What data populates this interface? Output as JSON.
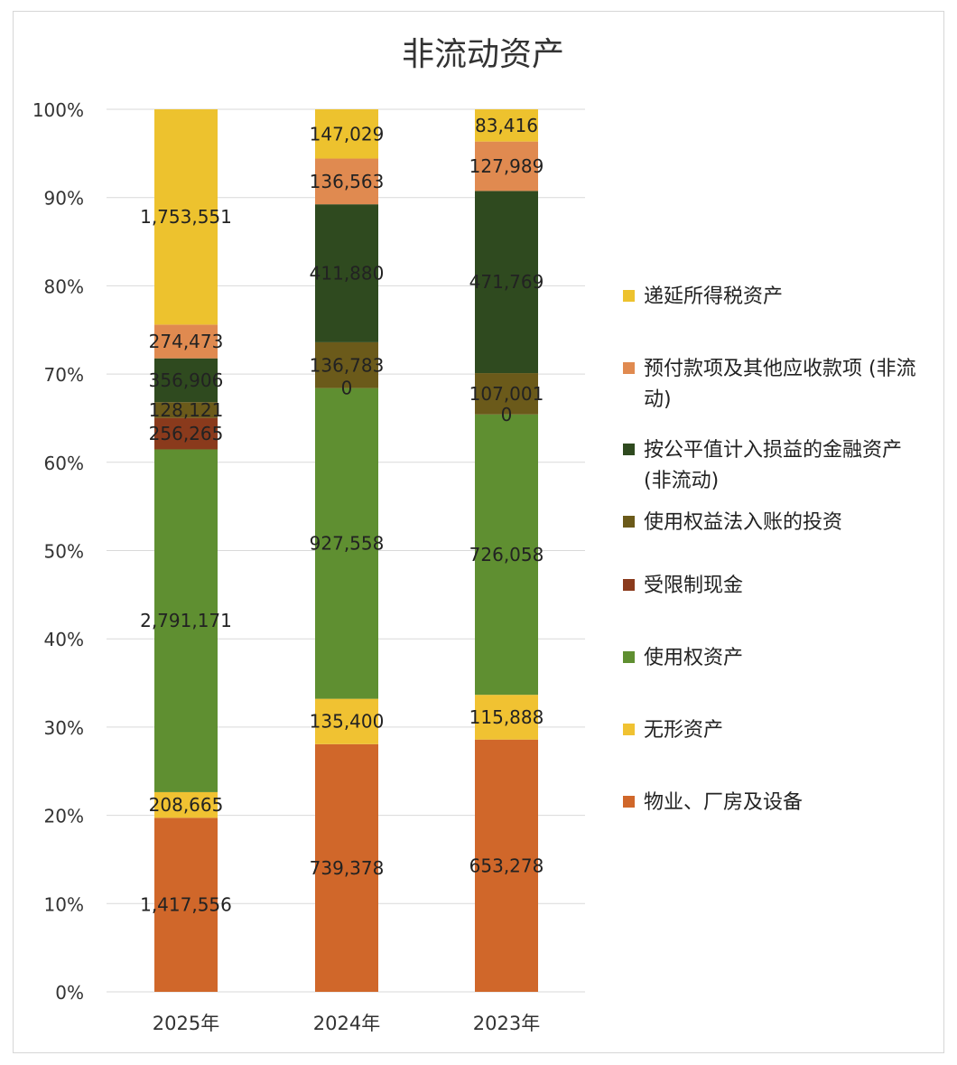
{
  "chart_data": {
    "type": "bar",
    "stacked": "percent",
    "title": "非流动资产",
    "categories": [
      "2025年",
      "2024年",
      "2023年"
    ],
    "y_tick_labels": [
      "0%",
      "10%",
      "20%",
      "30%",
      "40%",
      "50%",
      "60%",
      "70%",
      "80%",
      "90%",
      "100%"
    ],
    "ylim": [
      0,
      100
    ],
    "grid": true,
    "legend_position": "right",
    "series": [
      {
        "name": "物业、厂房及设备",
        "color": "#d0672a",
        "values": [
          1417556,
          739378,
          653278
        ],
        "labels": [
          "1,417,556",
          "739,378",
          "653,278"
        ]
      },
      {
        "name": "无形资产",
        "color": "#f0c232",
        "values": [
          208665,
          135400,
          115888
        ],
        "labels": [
          "208,665",
          "135,400",
          "115,888"
        ]
      },
      {
        "name": "使用权资产",
        "color": "#5f8f31",
        "values": [
          2791171,
          927558,
          726058
        ],
        "labels": [
          "2,791,171",
          "927,558",
          "726,058"
        ]
      },
      {
        "name": "受限制现金",
        "color": "#8a3a1c",
        "values": [
          256265,
          0,
          0
        ],
        "labels": [
          "256,265",
          "0",
          "0"
        ]
      },
      {
        "name": "使用权益法入账的投资",
        "color": "#6b5a1a",
        "values": [
          128121,
          136783,
          107001
        ],
        "labels": [
          "128,121",
          "136,783",
          "107,001"
        ]
      },
      {
        "name": "按公平值计入损益的金融资产 (非流动)",
        "color": "#2f4a1f",
        "values": [
          356906,
          411880,
          471769
        ],
        "labels": [
          "356,906",
          "411,880",
          "471,769"
        ]
      },
      {
        "name": "预付款项及其他应收款项 (非流动)",
        "color": "#e08a50",
        "values": [
          274473,
          136563,
          127989
        ],
        "labels": [
          "274,473",
          "136,563",
          "127,989"
        ]
      },
      {
        "name": "递延所得税资产",
        "color": "#edc22e",
        "values": [
          1753551,
          147029,
          83416
        ],
        "labels": [
          "1,753,551",
          "147,029",
          "83,416"
        ]
      }
    ],
    "legend_order": [
      {
        "name": "递延所得税资产",
        "color": "#edc22e"
      },
      {
        "name": "预付款项及其他应收款项 (非流动)",
        "color": "#e08a50"
      },
      {
        "name": "按公平值计入损益的金融资产 (非流动)",
        "color": "#2f4a1f"
      },
      {
        "name": "使用权益法入账的投资",
        "color": "#6b5a1a"
      },
      {
        "name": "受限制现金",
        "color": "#8a3a1c"
      },
      {
        "name": "使用权资产",
        "color": "#5f8f31"
      },
      {
        "name": "无形资产",
        "color": "#f0c232"
      },
      {
        "name": "物业、厂房及设备",
        "color": "#d0672a"
      }
    ]
  }
}
